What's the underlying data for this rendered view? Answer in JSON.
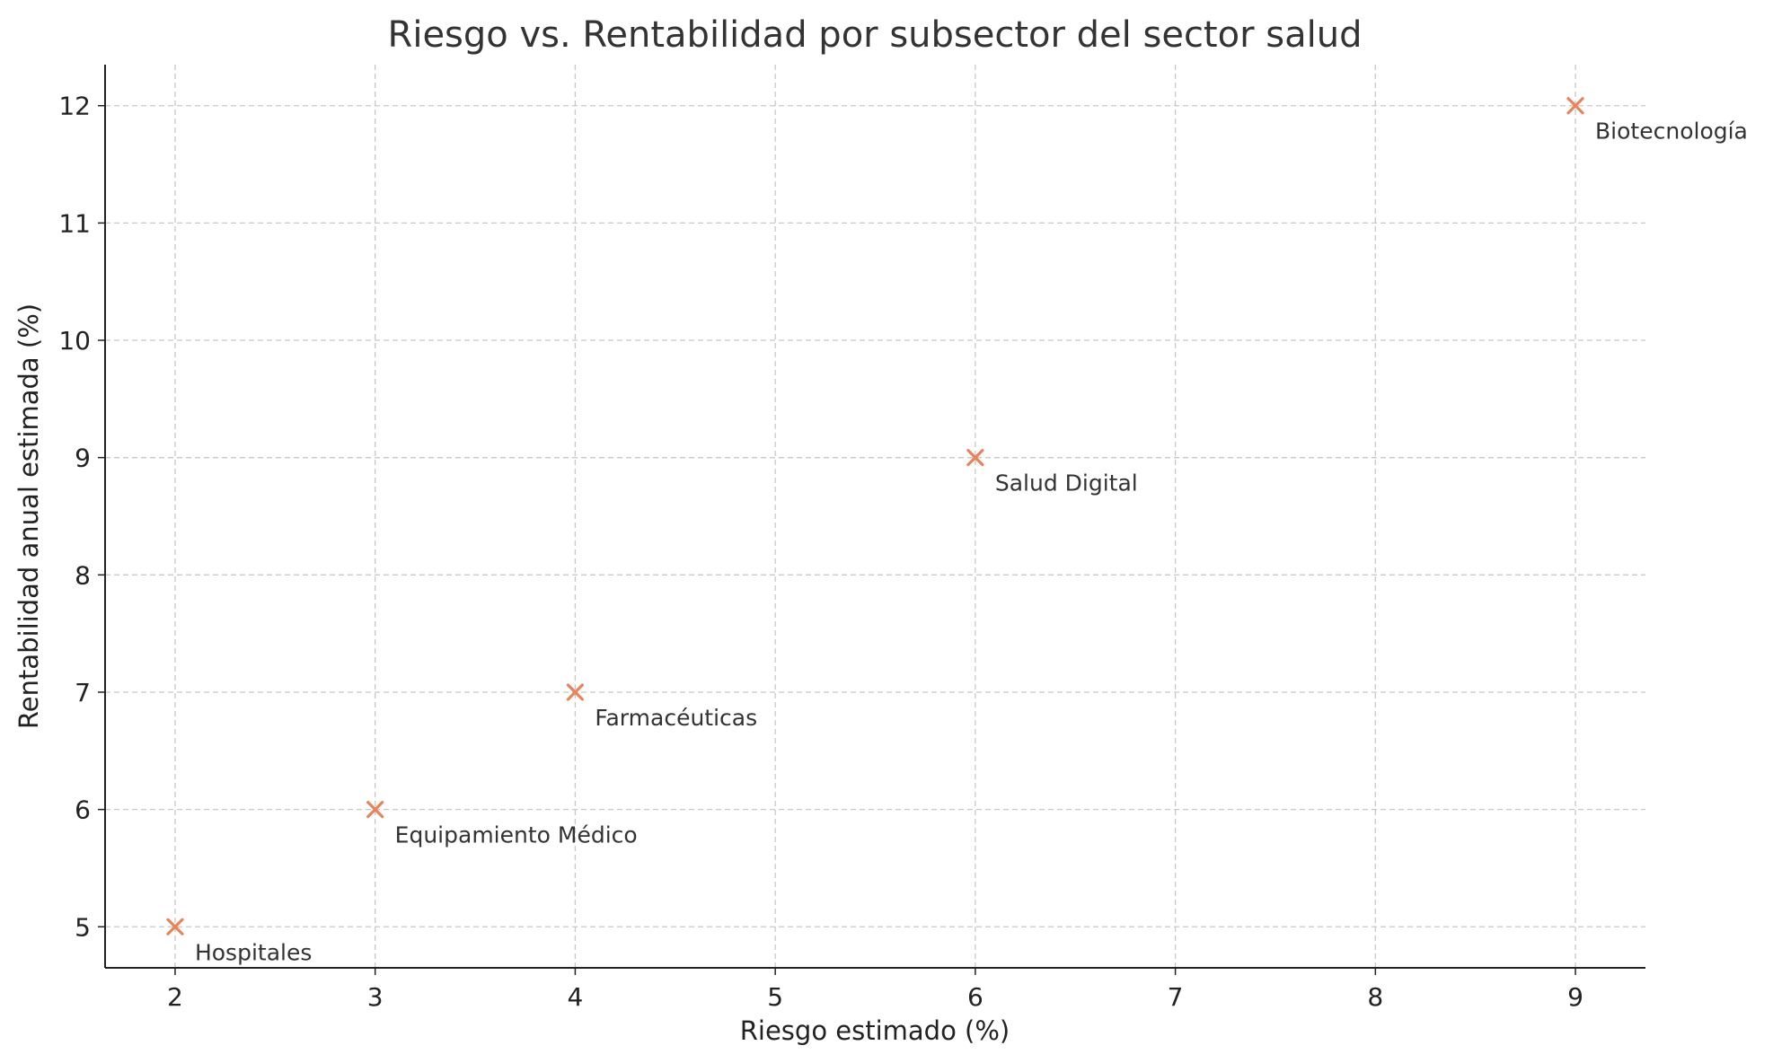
{
  "chart_data": {
    "type": "scatter",
    "title": "Riesgo vs. Rentabilidad por subsector del sector salud",
    "xlabel": "Riesgo estimado (%)",
    "ylabel": "Rentabilidad anual estimada (%)",
    "xlim": [
      1.65,
      9.35
    ],
    "ylim": [
      4.65,
      12.35
    ],
    "xticks": [
      2,
      3,
      4,
      5,
      6,
      7,
      8,
      9
    ],
    "yticks": [
      5,
      6,
      7,
      8,
      9,
      10,
      11,
      12
    ],
    "grid": true,
    "marker": "x",
    "color": "#E8845C",
    "points": [
      {
        "label": "Hospitales",
        "x": 2,
        "y": 5
      },
      {
        "label": "Equipamiento Médico",
        "x": 3,
        "y": 6
      },
      {
        "label": "Farmacéuticas",
        "x": 4,
        "y": 7
      },
      {
        "label": "Salud Digital",
        "x": 6,
        "y": 9
      },
      {
        "label": "Biotecnología",
        "x": 9,
        "y": 12
      }
    ]
  }
}
